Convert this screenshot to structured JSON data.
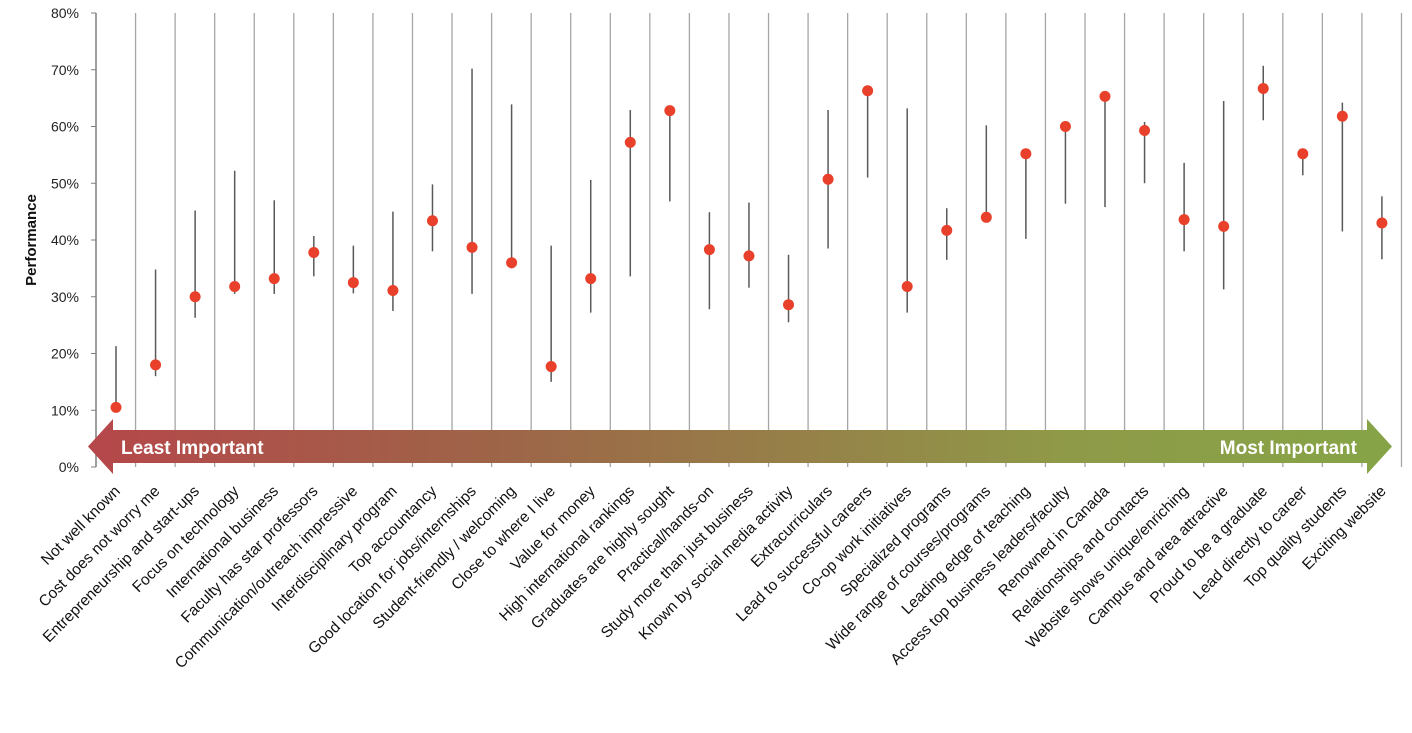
{
  "chart_data": {
    "type": "scatter",
    "title": "",
    "xlabel": "",
    "ylabel": "Performance",
    "ylim": [
      0,
      80
    ],
    "y_ticks": [
      "0%",
      "10%",
      "20%",
      "30%",
      "40%",
      "50%",
      "60%",
      "70%",
      "80%"
    ],
    "importance_arrow": {
      "left_label": "Least Important",
      "right_label": "Most Important",
      "colors": [
        "#b5474a",
        "#9d6648",
        "#8f9a48",
        "#86a447"
      ]
    },
    "marker_color": "#e8402a",
    "grid": "vertical",
    "categories": [
      "Not well known",
      "Cost does not worry me",
      "Entrepreneurship and start-ups",
      "Focus on technology",
      "International business",
      "Faculty has star professors",
      "Communication/outreach impressive",
      "Interdisciplinary program",
      "Top accountancy",
      "Good location for jobs/internships",
      "Student-friendly / welcoming",
      "Close to where I live",
      "Value for money",
      "High international rankings",
      "Graduates are highly sought",
      "Practical/hands-on",
      "Study more than just business",
      "Known by social media activity",
      "Extracurriculars",
      "Lead to successful careers",
      "Co-op work initiatives",
      "Specialized programs",
      "Wide range of courses/programs",
      "Leading edge of teaching",
      "Access top business leaders/faculty",
      "Renowned in Canada",
      "Relationships and contacts",
      "Website shows unique/enriching",
      "Campus and area attractive",
      "Proud to be a graduate",
      "Lead directly to career",
      "Top quality students",
      "Exciting website"
    ],
    "series": [
      {
        "name": "Performance",
        "values": [
          10.5,
          18,
          30,
          31.8,
          33.2,
          37.8,
          32.5,
          31.1,
          43.4,
          38.7,
          36,
          17.7,
          33.2,
          57.2,
          62.8,
          38.3,
          37.2,
          28.6,
          50.7,
          66.3,
          31.8,
          41.7,
          44,
          55.2,
          60,
          65.3,
          59.3,
          43.6,
          42.4,
          66.7,
          55.2,
          61.8,
          43
        ]
      },
      {
        "name": "Range low",
        "values": [
          10,
          16,
          26.3,
          30.5,
          30.5,
          33.6,
          30.6,
          27.5,
          38,
          30.5,
          35,
          15,
          27.2,
          33.6,
          46.8,
          27.8,
          31.6,
          25.5,
          38.5,
          51,
          27.2,
          36.5,
          44,
          40.2,
          46.4,
          45.8,
          50,
          38,
          31.3,
          61.1,
          51.4,
          41.5,
          36.6
        ]
      },
      {
        "name": "Range high",
        "values": [
          21.3,
          34.8,
          45.2,
          52.2,
          47,
          40.7,
          39,
          45,
          49.8,
          70.2,
          63.9,
          39,
          50.6,
          62.9,
          62.8,
          44.9,
          46.6,
          37.4,
          62.9,
          66.3,
          63.2,
          45.6,
          60.2,
          55.2,
          60,
          65.3,
          60.8,
          53.6,
          64.5,
          70.7,
          55.2,
          64.2,
          47.7
        ]
      }
    ]
  }
}
